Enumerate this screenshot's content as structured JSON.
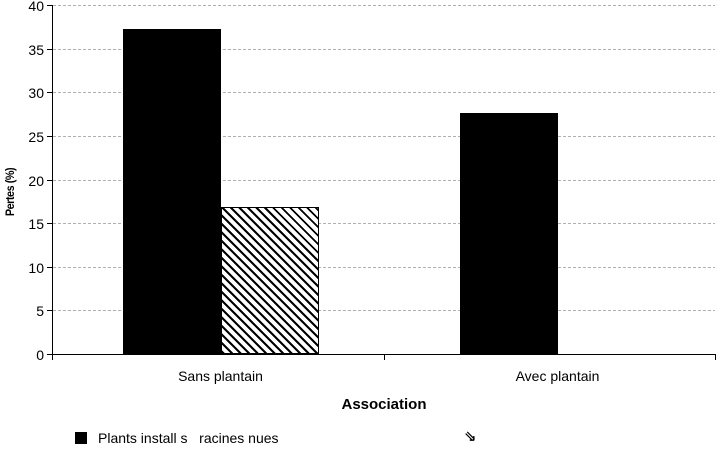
{
  "chart_data": {
    "type": "bar",
    "title": "",
    "categories": [
      "Sans plantain",
      "Avec plantain"
    ],
    "series": [
      {
        "name": "Plants install s   racines nues",
        "pattern": "solid-black",
        "values": [
          37.3,
          27.6
        ]
      },
      {
        "name": "",
        "pattern": "diagonal-hatch",
        "values": [
          16.8,
          0
        ]
      }
    ],
    "xlabel": "Association",
    "ylabel": "Pertes (%)",
    "ylim": [
      0,
      40
    ],
    "yticks": [
      0,
      5,
      10,
      15,
      20,
      25,
      30,
      35,
      40
    ],
    "grid": "horizontal-dotted-gray",
    "legend_position": "bottom"
  },
  "legend": {
    "entries": [
      {
        "swatch": "black-square",
        "label": "Plants install s   racines nues"
      },
      {
        "swatch": "double-arrow-glyph",
        "glyph": "⇘"
      }
    ]
  },
  "colors": {
    "bar_fill": "#000000",
    "gridline": "#b0b0b0",
    "axis": "#000000",
    "background": "#ffffff"
  }
}
